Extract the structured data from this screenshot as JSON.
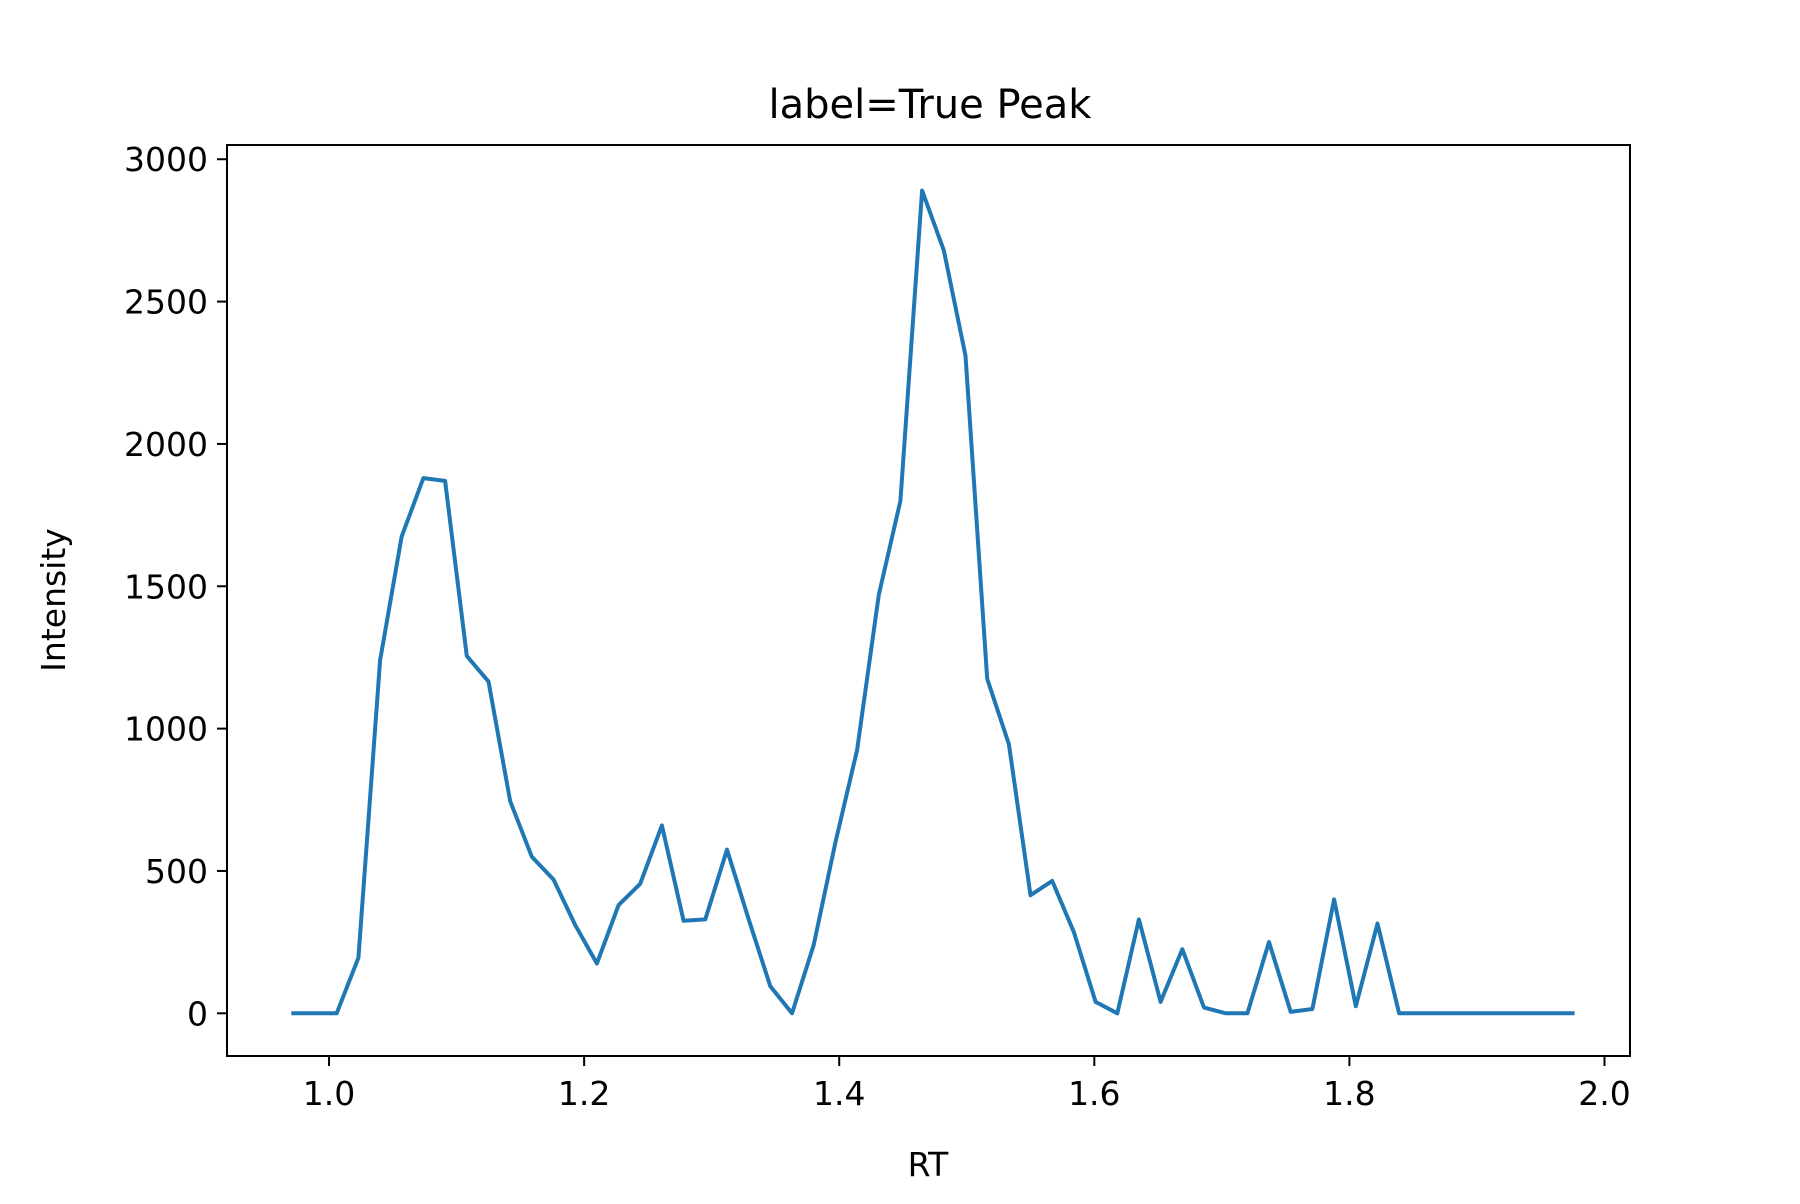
{
  "chart_data": {
    "type": "line",
    "title": "label=True Peak",
    "xlabel": "RT",
    "ylabel": "Intensity",
    "xlim": [
      0.92,
      2.02
    ],
    "ylim": [
      -150,
      3050
    ],
    "xticks": [
      1.0,
      1.2,
      1.4,
      1.6,
      1.8,
      2.0
    ],
    "xtick_labels": [
      "1.0",
      "1.2",
      "1.4",
      "1.6",
      "1.8",
      "2.0"
    ],
    "yticks": [
      0,
      500,
      1000,
      1500,
      2000,
      2500,
      3000
    ],
    "ytick_labels": [
      "0",
      "500",
      "1000",
      "1500",
      "2000",
      "2500",
      "3000"
    ],
    "grid": false,
    "series": [
      {
        "color": "#1f77b4",
        "x": [
          0.972,
          0.989,
          1.006,
          1.023,
          1.04,
          1.057,
          1.074,
          1.091,
          1.108,
          1.125,
          1.142,
          1.159,
          1.176,
          1.193,
          1.21,
          1.227,
          1.244,
          1.261,
          1.278,
          1.295,
          1.312,
          1.329,
          1.346,
          1.363,
          1.38,
          1.397,
          1.414,
          1.431,
          1.448,
          1.465,
          1.482,
          1.499,
          1.516,
          1.533,
          1.55,
          1.567,
          1.584,
          1.601,
          1.618,
          1.635,
          1.652,
          1.669,
          1.686,
          1.703,
          1.72,
          1.737,
          1.754,
          1.771,
          1.788,
          1.805,
          1.822,
          1.839,
          1.856,
          1.873,
          1.89,
          1.907,
          1.924,
          1.941,
          1.958,
          1.975
        ],
        "y": [
          0,
          0,
          0,
          195,
          1240,
          1675,
          1880,
          1870,
          1255,
          1165,
          745,
          550,
          470,
          310,
          175,
          380,
          455,
          660,
          325,
          330,
          575,
          330,
          95,
          0,
          240,
          600,
          925,
          1470,
          1800,
          2890,
          2680,
          2310,
          1175,
          945,
          415,
          465,
          285,
          40,
          0,
          330,
          40,
          225,
          20,
          0,
          0,
          250,
          5,
          15,
          400,
          25,
          315,
          0,
          0,
          0,
          0,
          0,
          0,
          0,
          0,
          0
        ]
      }
    ]
  }
}
